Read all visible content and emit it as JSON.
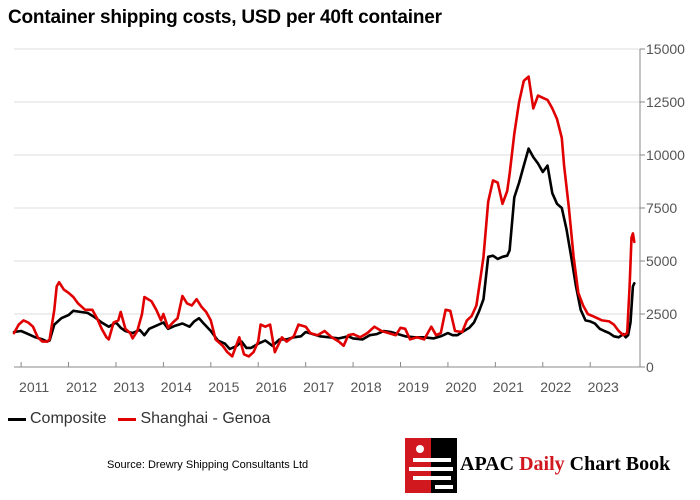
{
  "title": "Container shipping costs, USD per 40ft container",
  "source": "Source: Drewry Shipping Consultants Ltd",
  "brand": {
    "word1": "APAC",
    "word2": "Daily",
    "word3": "Chart Book"
  },
  "colors": {
    "composite": "#000000",
    "shanghai_genoa": "#e00000",
    "grid": "#dcdcdc",
    "brand_red": "#d0181e"
  },
  "chart_data": {
    "type": "line",
    "title": "Container shipping costs, USD per 40ft container",
    "xlabel": "",
    "ylabel": "",
    "x_range": [
      2010.85,
      2024.05
    ],
    "ylim": [
      0,
      15000
    ],
    "y_ticks": [
      0,
      2500,
      5000,
      7500,
      10000,
      12500,
      15000
    ],
    "y_tick_labels": [
      "0",
      "2500",
      "5000",
      "7500",
      "10000",
      "12500",
      "15000"
    ],
    "x_ticks": [
      2011,
      2012,
      2013,
      2014,
      2015,
      2016,
      2017,
      2018,
      2019,
      2020,
      2021,
      2022,
      2023
    ],
    "x_tick_labels": [
      "2011",
      "2012",
      "2013",
      "2014",
      "2015",
      "2016",
      "2017",
      "2018",
      "2019",
      "2020",
      "2021",
      "2022",
      "2023"
    ],
    "y_axis_side": "right",
    "grid": "horizontal",
    "legend": "bottom-left",
    "series": [
      {
        "name": "Composite",
        "points": [
          [
            2010.85,
            1650
          ],
          [
            2011.0,
            1700
          ],
          [
            2011.15,
            1550
          ],
          [
            2011.3,
            1400
          ],
          [
            2011.45,
            1300
          ],
          [
            2011.55,
            1200
          ],
          [
            2011.6,
            1250
          ],
          [
            2011.7,
            2000
          ],
          [
            2011.85,
            2300
          ],
          [
            2012.0,
            2450
          ],
          [
            2012.1,
            2650
          ],
          [
            2012.25,
            2600
          ],
          [
            2012.4,
            2550
          ],
          [
            2012.55,
            2350
          ],
          [
            2012.7,
            2100
          ],
          [
            2012.85,
            1900
          ],
          [
            2013.0,
            2100
          ],
          [
            2013.1,
            1850
          ],
          [
            2013.2,
            1700
          ],
          [
            2013.35,
            1600
          ],
          [
            2013.5,
            1750
          ],
          [
            2013.6,
            1500
          ],
          [
            2013.7,
            1800
          ],
          [
            2013.85,
            1950
          ],
          [
            2014.0,
            2100
          ],
          [
            2014.1,
            1800
          ],
          [
            2014.25,
            1950
          ],
          [
            2014.4,
            2050
          ],
          [
            2014.55,
            1900
          ],
          [
            2014.65,
            2150
          ],
          [
            2014.75,
            2300
          ],
          [
            2014.85,
            2050
          ],
          [
            2015.0,
            1700
          ],
          [
            2015.15,
            1250
          ],
          [
            2015.3,
            1100
          ],
          [
            2015.4,
            850
          ],
          [
            2015.55,
            1000
          ],
          [
            2015.65,
            1200
          ],
          [
            2015.75,
            900
          ],
          [
            2015.85,
            900
          ],
          [
            2016.0,
            1100
          ],
          [
            2016.15,
            1250
          ],
          [
            2016.3,
            1000
          ],
          [
            2016.45,
            1300
          ],
          [
            2016.6,
            1300
          ],
          [
            2016.75,
            1400
          ],
          [
            2016.9,
            1450
          ],
          [
            2017.0,
            1650
          ],
          [
            2017.15,
            1550
          ],
          [
            2017.3,
            1450
          ],
          [
            2017.5,
            1400
          ],
          [
            2017.7,
            1350
          ],
          [
            2017.9,
            1450
          ],
          [
            2018.0,
            1350
          ],
          [
            2018.2,
            1300
          ],
          [
            2018.35,
            1500
          ],
          [
            2018.5,
            1550
          ],
          [
            2018.65,
            1700
          ],
          [
            2018.8,
            1650
          ],
          [
            2018.95,
            1550
          ],
          [
            2019.1,
            1450
          ],
          [
            2019.3,
            1400
          ],
          [
            2019.5,
            1400
          ],
          [
            2019.7,
            1350
          ],
          [
            2019.85,
            1450
          ],
          [
            2020.0,
            1600
          ],
          [
            2020.1,
            1500
          ],
          [
            2020.2,
            1500
          ],
          [
            2020.3,
            1650
          ],
          [
            2020.45,
            1850
          ],
          [
            2020.55,
            2100
          ],
          [
            2020.65,
            2600
          ],
          [
            2020.75,
            3200
          ],
          [
            2020.85,
            5200
          ],
          [
            2020.95,
            5250
          ],
          [
            2021.05,
            5100
          ],
          [
            2021.15,
            5200
          ],
          [
            2021.25,
            5250
          ],
          [
            2021.3,
            5500
          ],
          [
            2021.4,
            8000
          ],
          [
            2021.5,
            8700
          ],
          [
            2021.6,
            9500
          ],
          [
            2021.7,
            10300
          ],
          [
            2021.8,
            9900
          ],
          [
            2021.9,
            9600
          ],
          [
            2022.0,
            9200
          ],
          [
            2022.1,
            9500
          ],
          [
            2022.2,
            8200
          ],
          [
            2022.3,
            7700
          ],
          [
            2022.4,
            7500
          ],
          [
            2022.5,
            6500
          ],
          [
            2022.6,
            5200
          ],
          [
            2022.7,
            3800
          ],
          [
            2022.8,
            2700
          ],
          [
            2022.9,
            2200
          ],
          [
            2023.0,
            2150
          ],
          [
            2023.1,
            2050
          ],
          [
            2023.2,
            1800
          ],
          [
            2023.3,
            1700
          ],
          [
            2023.4,
            1600
          ],
          [
            2023.5,
            1450
          ],
          [
            2023.6,
            1400
          ],
          [
            2023.7,
            1550
          ],
          [
            2023.75,
            1400
          ],
          [
            2023.8,
            1500
          ],
          [
            2023.85,
            2100
          ],
          [
            2023.9,
            3800
          ],
          [
            2023.93,
            3950
          ]
        ]
      },
      {
        "name": "Shanghai - Genoa",
        "points": [
          [
            2010.85,
            1600
          ],
          [
            2010.95,
            2000
          ],
          [
            2011.05,
            2200
          ],
          [
            2011.15,
            2100
          ],
          [
            2011.25,
            1900
          ],
          [
            2011.35,
            1400
          ],
          [
            2011.45,
            1200
          ],
          [
            2011.55,
            1200
          ],
          [
            2011.6,
            1300
          ],
          [
            2011.7,
            2700
          ],
          [
            2011.75,
            3800
          ],
          [
            2011.8,
            4000
          ],
          [
            2011.9,
            3650
          ],
          [
            2012.0,
            3500
          ],
          [
            2012.1,
            3300
          ],
          [
            2012.2,
            3000
          ],
          [
            2012.35,
            2700
          ],
          [
            2012.5,
            2700
          ],
          [
            2012.6,
            2300
          ],
          [
            2012.7,
            1800
          ],
          [
            2012.8,
            1400
          ],
          [
            2012.85,
            1300
          ],
          [
            2012.95,
            2100
          ],
          [
            2013.05,
            2200
          ],
          [
            2013.1,
            2600
          ],
          [
            2013.2,
            1800
          ],
          [
            2013.3,
            1600
          ],
          [
            2013.35,
            1350
          ],
          [
            2013.45,
            1700
          ],
          [
            2013.55,
            2500
          ],
          [
            2013.6,
            3300
          ],
          [
            2013.75,
            3100
          ],
          [
            2013.85,
            2700
          ],
          [
            2013.95,
            2200
          ],
          [
            2014.0,
            2500
          ],
          [
            2014.1,
            1850
          ],
          [
            2014.2,
            2100
          ],
          [
            2014.3,
            2300
          ],
          [
            2014.4,
            3350
          ],
          [
            2014.5,
            3000
          ],
          [
            2014.6,
            2900
          ],
          [
            2014.7,
            3200
          ],
          [
            2014.8,
            2850
          ],
          [
            2014.9,
            2600
          ],
          [
            2015.0,
            2200
          ],
          [
            2015.1,
            1300
          ],
          [
            2015.25,
            1000
          ],
          [
            2015.35,
            700
          ],
          [
            2015.45,
            500
          ],
          [
            2015.55,
            1100
          ],
          [
            2015.6,
            1400
          ],
          [
            2015.7,
            600
          ],
          [
            2015.8,
            500
          ],
          [
            2015.9,
            700
          ],
          [
            2016.0,
            1200
          ],
          [
            2016.05,
            2000
          ],
          [
            2016.15,
            1900
          ],
          [
            2016.25,
            2000
          ],
          [
            2016.35,
            700
          ],
          [
            2016.5,
            1400
          ],
          [
            2016.6,
            1200
          ],
          [
            2016.75,
            1450
          ],
          [
            2016.85,
            2000
          ],
          [
            2017.0,
            1900
          ],
          [
            2017.1,
            1600
          ],
          [
            2017.25,
            1500
          ],
          [
            2017.4,
            1700
          ],
          [
            2017.55,
            1400
          ],
          [
            2017.7,
            1200
          ],
          [
            2017.8,
            1000
          ],
          [
            2017.9,
            1500
          ],
          [
            2018.0,
            1550
          ],
          [
            2018.15,
            1400
          ],
          [
            2018.3,
            1600
          ],
          [
            2018.45,
            1900
          ],
          [
            2018.6,
            1700
          ],
          [
            2018.75,
            1600
          ],
          [
            2018.9,
            1500
          ],
          [
            2019.0,
            1850
          ],
          [
            2019.1,
            1800
          ],
          [
            2019.2,
            1300
          ],
          [
            2019.35,
            1400
          ],
          [
            2019.5,
            1300
          ],
          [
            2019.65,
            1900
          ],
          [
            2019.75,
            1500
          ],
          [
            2019.85,
            1600
          ],
          [
            2019.95,
            2700
          ],
          [
            2020.05,
            2650
          ],
          [
            2020.15,
            1700
          ],
          [
            2020.3,
            1650
          ],
          [
            2020.4,
            2200
          ],
          [
            2020.5,
            2400
          ],
          [
            2020.6,
            2900
          ],
          [
            2020.7,
            4400
          ],
          [
            2020.75,
            5200
          ],
          [
            2020.85,
            7800
          ],
          [
            2020.95,
            8800
          ],
          [
            2021.05,
            8700
          ],
          [
            2021.15,
            7700
          ],
          [
            2021.25,
            8300
          ],
          [
            2021.3,
            9100
          ],
          [
            2021.4,
            11000
          ],
          [
            2021.5,
            12500
          ],
          [
            2021.6,
            13500
          ],
          [
            2021.7,
            13700
          ],
          [
            2021.8,
            12200
          ],
          [
            2021.9,
            12800
          ],
          [
            2022.0,
            12700
          ],
          [
            2022.1,
            12600
          ],
          [
            2022.2,
            12200
          ],
          [
            2022.3,
            11700
          ],
          [
            2022.4,
            10800
          ],
          [
            2022.45,
            9500
          ],
          [
            2022.55,
            7500
          ],
          [
            2022.65,
            5200
          ],
          [
            2022.75,
            3500
          ],
          [
            2022.85,
            2900
          ],
          [
            2022.95,
            2500
          ],
          [
            2023.05,
            2400
          ],
          [
            2023.15,
            2300
          ],
          [
            2023.25,
            2200
          ],
          [
            2023.4,
            2150
          ],
          [
            2023.5,
            2000
          ],
          [
            2023.6,
            1700
          ],
          [
            2023.7,
            1500
          ],
          [
            2023.78,
            1600
          ],
          [
            2023.83,
            3800
          ],
          [
            2023.87,
            6100
          ],
          [
            2023.9,
            6300
          ],
          [
            2023.93,
            5900
          ]
        ]
      }
    ]
  }
}
